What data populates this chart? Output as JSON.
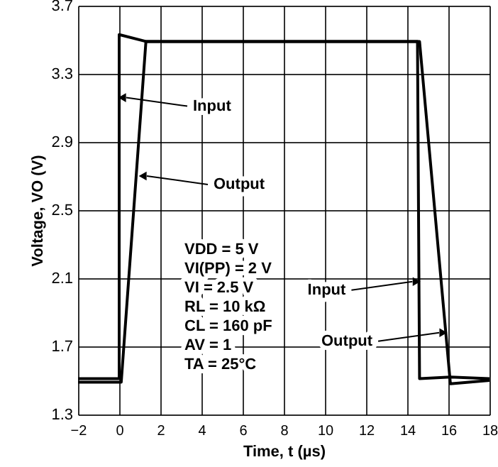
{
  "chart_data": {
    "type": "line",
    "xlabel": "Time, t (µs)",
    "ylabel": "Voltage, VO (V)",
    "xlim": [
      -2,
      18
    ],
    "xticks": [
      -2,
      0,
      2,
      4,
      6,
      8,
      10,
      12,
      14,
      16,
      18
    ],
    "ylim": [
      1.3,
      3.7
    ],
    "yticks": [
      1.3,
      1.7,
      2.1,
      2.5,
      2.9,
      3.3,
      3.7
    ],
    "grid": true,
    "series": [
      {
        "color": "#000000",
        "x": [
          -2,
          0,
          0,
          1.3,
          14.5,
          14.6,
          16.1,
          18
        ],
        "values": [
          1.51,
          1.51,
          3.53,
          3.49,
          3.49,
          1.51,
          1.52,
          1.51
        ]
      },
      {
        "color": "#000000",
        "x": [
          -2,
          0.1,
          1.3,
          14.6,
          16.1,
          18
        ],
        "values": [
          1.49,
          1.49,
          3.49,
          3.49,
          1.48,
          1.5
        ]
      }
    ],
    "annotations": [
      {
        "text": "Input",
        "x": 0,
        "y": 3.16
      },
      {
        "text": "Output",
        "x": 1,
        "y": 2.7
      },
      {
        "text": "Input",
        "x": 14.6,
        "y": 2.08
      },
      {
        "text": "Output",
        "x": 15.9,
        "y": 1.78
      },
      "VDD = 5 V",
      "VI(PP) = 2 V",
      "VI = 2.5 V",
      "RL = 10 kΩ",
      "CL = 160 pF",
      "AV = 1",
      "TA = 25°C"
    ]
  }
}
